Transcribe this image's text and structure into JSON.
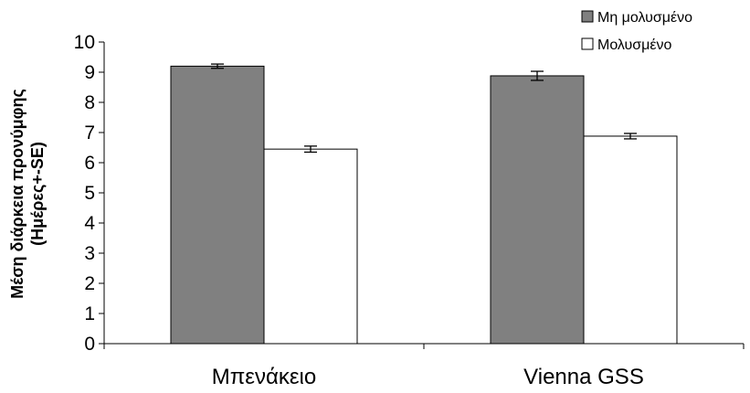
{
  "chart_data": {
    "type": "bar",
    "categories": [
      "Μπενάκειο",
      "Vienna GSS"
    ],
    "series": [
      {
        "name": "Μη μολυσμένο",
        "values": [
          9.2,
          8.88
        ],
        "errors": [
          0.07,
          0.15
        ],
        "color": "#808080"
      },
      {
        "name": "Μολυσμένο",
        "values": [
          6.45,
          6.88
        ],
        "errors": [
          0.1,
          0.09
        ],
        "color": "#ffffff"
      }
    ],
    "ylabel_lines": [
      "Μέση διάρκεια προνύμφης",
      "(Ημέρες+-SE)"
    ],
    "ylim": [
      0,
      10
    ],
    "yticks": [
      "0",
      "1",
      "2",
      "3",
      "4",
      "5",
      "6",
      "7",
      "8",
      "9",
      "10"
    ],
    "grid": false,
    "legend_position": "top-right"
  }
}
